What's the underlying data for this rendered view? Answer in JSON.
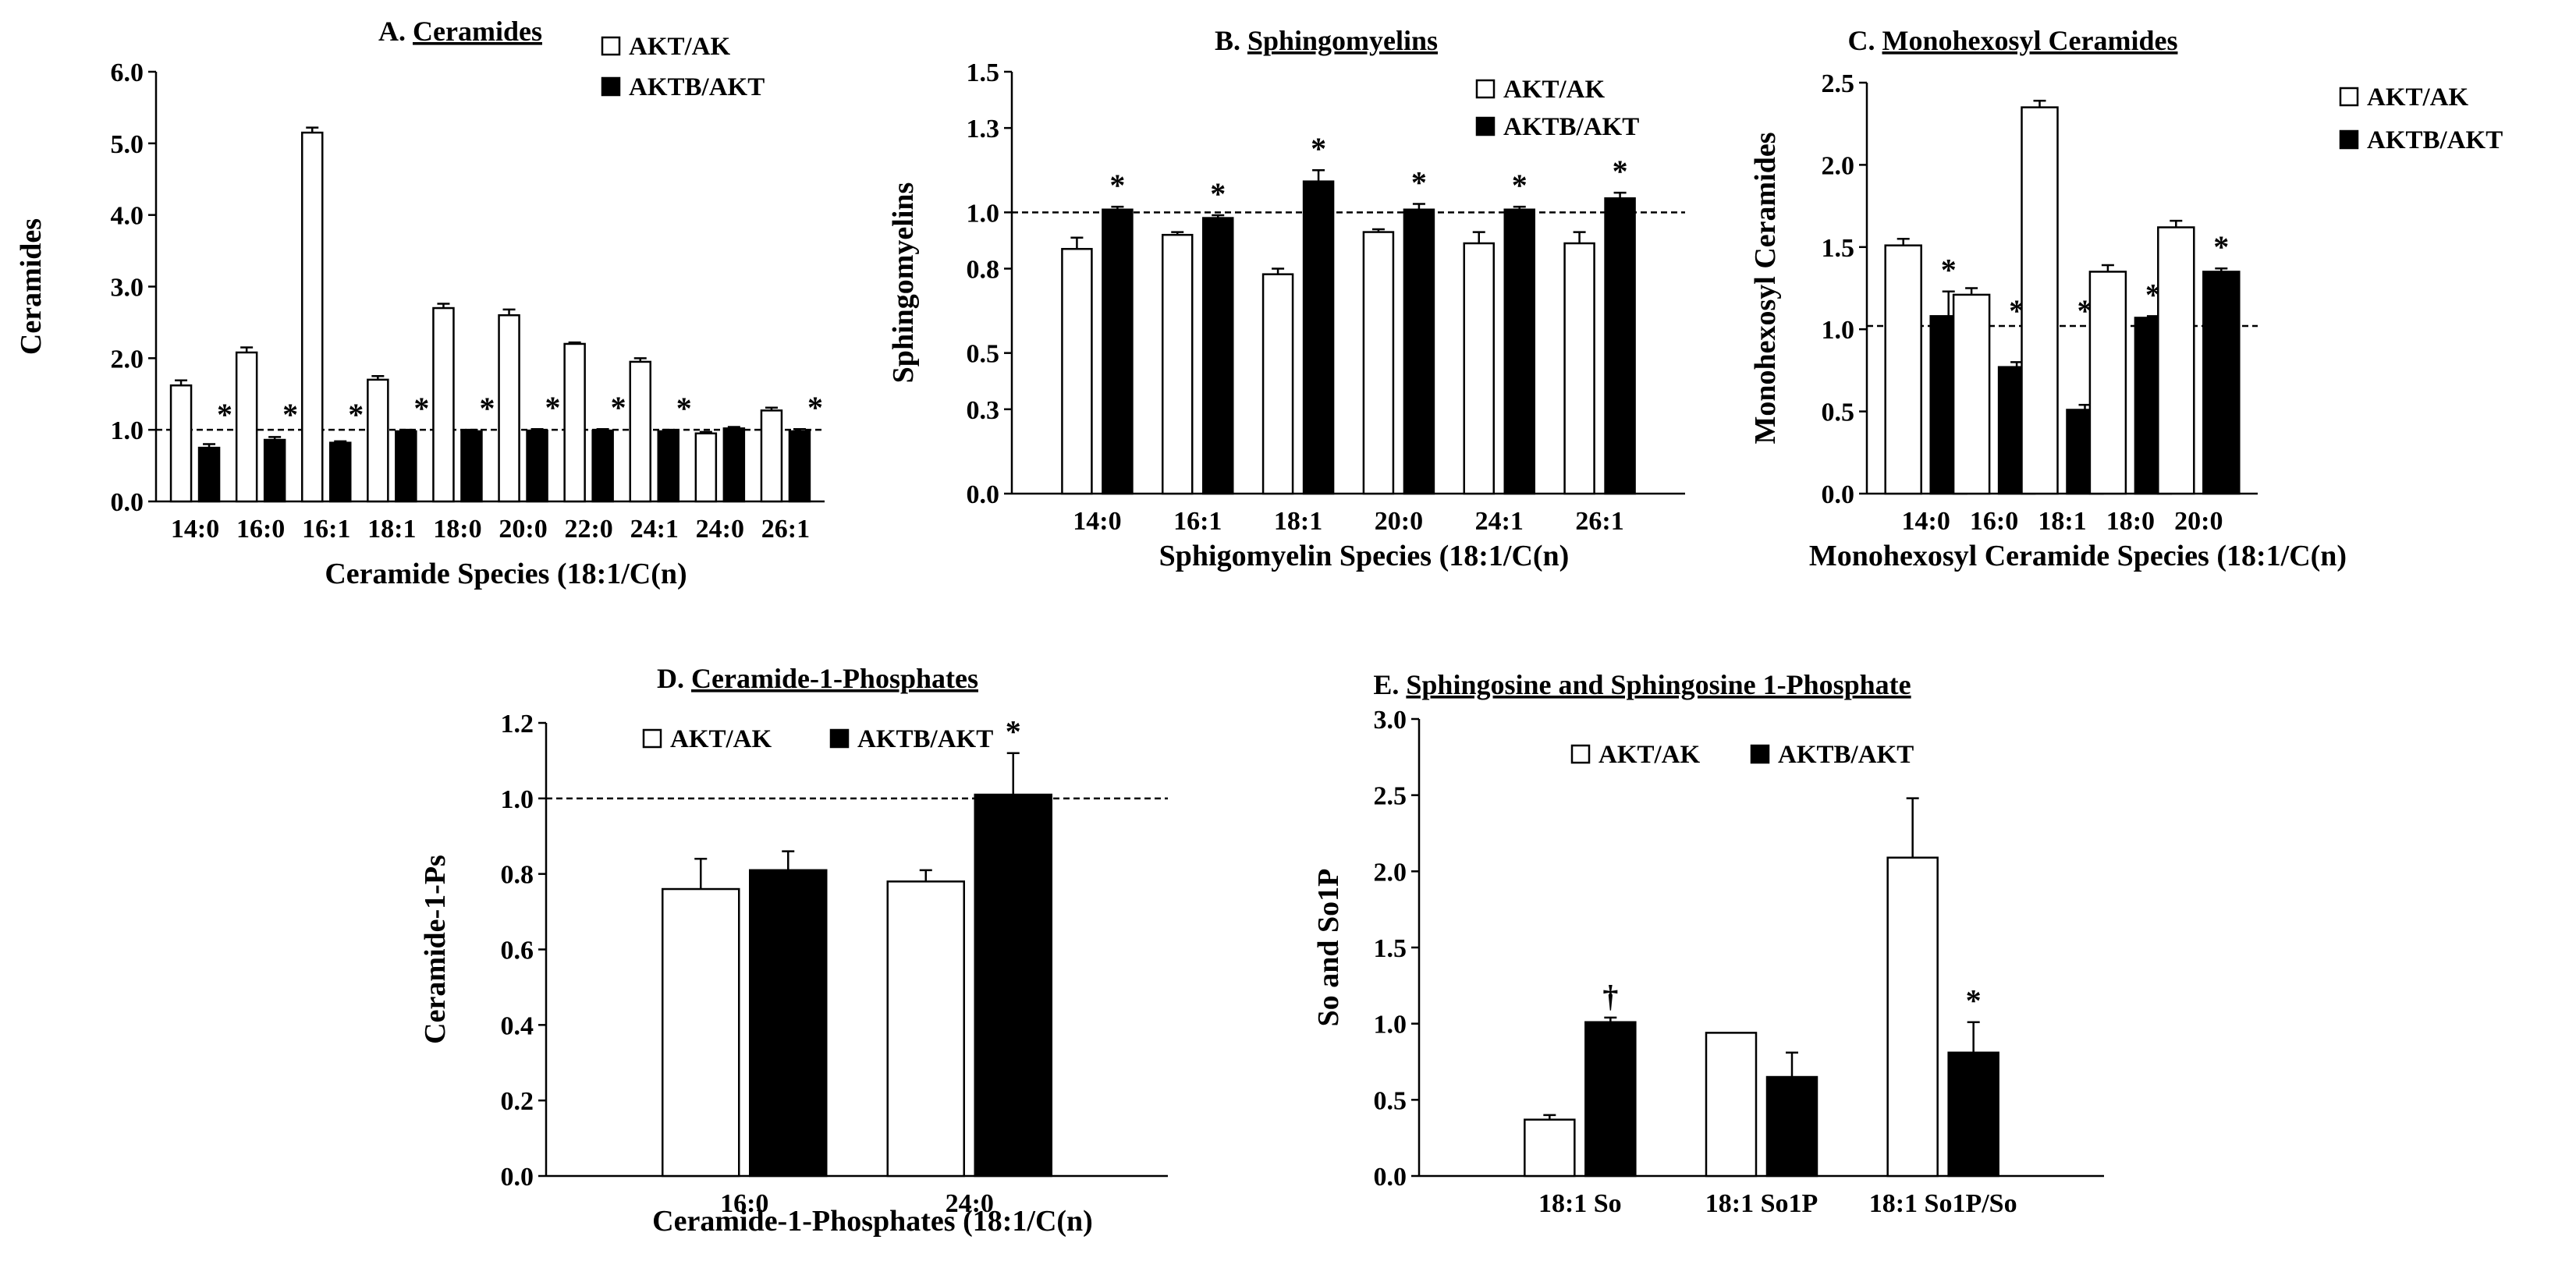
{
  "series_style": {
    "AKT/AK": "#ffffff",
    "AKTB/AKT": "#000000"
  },
  "chart_data": [
    {
      "id": "A",
      "type": "bar",
      "title_prefix": "A. ",
      "title": "Ceramides",
      "ylabel": "Ceramides",
      "xlabel": "Ceramide Species  (18:1/C(n)",
      "ylim": [
        0,
        6
      ],
      "yticks": [
        "0.0",
        "1.0",
        "2.0",
        "3.0",
        "4.0",
        "5.0",
        "6.0"
      ],
      "reference_line": 1.0,
      "categories": [
        "14:0",
        "16:0",
        "16:1",
        "18:1",
        "18:0",
        "20:0",
        "22:0",
        "24:1",
        "24:0",
        "26:1"
      ],
      "legend": [
        "AKT/AK",
        "AKTB/AKT"
      ],
      "legend_position": "top-right",
      "series": [
        {
          "name": "AKT/AK",
          "values": [
            1.62,
            2.08,
            5.15,
            1.7,
            2.7,
            2.6,
            2.2,
            1.95,
            0.95,
            1.27
          ],
          "errors": [
            0.07,
            0.07,
            0.07,
            0.05,
            0.06,
            0.08,
            0.02,
            0.05,
            0.02,
            0.04
          ]
        },
        {
          "name": "AKTB/AKT",
          "values": [
            0.75,
            0.86,
            0.82,
            0.98,
            0.98,
            0.99,
            0.99,
            0.98,
            1.02,
            0.98
          ],
          "errors": [
            0.05,
            0.04,
            0.02,
            0.02,
            0.02,
            0.02,
            0.02,
            0.02,
            0.02,
            0.03
          ]
        }
      ],
      "annotations": [
        "*",
        "*",
        "*",
        "*",
        "*",
        "*",
        "*",
        "*",
        "",
        "*"
      ]
    },
    {
      "id": "B",
      "type": "bar",
      "title_prefix": "B. ",
      "title": "Sphingomyelins",
      "ylabel": "Sphingomyelins",
      "xlabel": "Sphigomyelin  Species  (18:1/C(n)",
      "ylim": [
        0,
        1.5
      ],
      "yticks": [
        "0.0",
        "0.3",
        "0.5",
        "0.8",
        "1.0",
        "1.3",
        "1.5"
      ],
      "reference_line": 1.0,
      "categories": [
        "14:0",
        "16:1",
        "18:1",
        "20:0",
        "24:1",
        "26:1"
      ],
      "legend": [
        "AKT/AK",
        "AKTB/AKT"
      ],
      "legend_position": "top-right",
      "series": [
        {
          "name": "AKT/AK",
          "values": [
            0.87,
            0.92,
            0.78,
            0.93,
            0.89,
            0.89
          ],
          "errors": [
            0.04,
            0.01,
            0.02,
            0.01,
            0.04,
            0.04
          ]
        },
        {
          "name": "AKTB/AKT",
          "values": [
            1.01,
            0.98,
            1.11,
            1.01,
            1.01,
            1.05
          ],
          "errors": [
            0.01,
            0.01,
            0.04,
            0.02,
            0.01,
            0.02
          ]
        }
      ],
      "annotations": [
        "*",
        "*",
        "*",
        "*",
        "*",
        "*"
      ]
    },
    {
      "id": "C",
      "type": "bar",
      "title_prefix": "C. ",
      "title": "Monohexosyl Ceramides",
      "ylabel": "Monohexosyl Ceramides",
      "xlabel": "Monohexosyl  Ceramide Species  (18:1/C(n)",
      "ylim": [
        0,
        2.5
      ],
      "yticks": [
        "0.0",
        "0.5",
        "1.0",
        "1.5",
        "2.0",
        "2.5"
      ],
      "reference_line": 1.02,
      "categories": [
        "14:0",
        "16:0",
        "18:1",
        "18:0",
        "20:0"
      ],
      "legend": [
        "AKT/AK",
        "AKTB/AKT"
      ],
      "legend_position": "top-right",
      "series": [
        {
          "name": "AKT/AK",
          "values": [
            1.51,
            1.21,
            2.35,
            1.35,
            1.62
          ],
          "errors": [
            0.04,
            0.04,
            0.04,
            0.04,
            0.04
          ]
        },
        {
          "name": "AKTB/AKT",
          "values": [
            1.08,
            0.77,
            0.51,
            1.07,
            1.35
          ],
          "errors": [
            0.15,
            0.03,
            0.03,
            0.01,
            0.02
          ]
        }
      ],
      "annotations": [
        "*",
        "*",
        "*",
        "*",
        "*"
      ]
    },
    {
      "id": "D",
      "type": "bar",
      "title_prefix": "D. ",
      "title": "Ceramide-1-Phosphates",
      "ylabel": "Ceramide-1-Ps",
      "xlabel": "Ceramide-1-Phosphates  (18:1/C(n)",
      "ylim": [
        0,
        1.2
      ],
      "yticks": [
        "0.0",
        "0.2",
        "0.4",
        "0.6",
        "0.8",
        "1.0",
        "1.2"
      ],
      "reference_line": 1.0,
      "categories": [
        "16:0",
        "24:0"
      ],
      "legend": [
        "AKT/AK",
        "AKTB/AKT"
      ],
      "legend_position": "top",
      "series": [
        {
          "name": "AKT/AK",
          "values": [
            0.76,
            0.78
          ],
          "errors": [
            0.08,
            0.03
          ]
        },
        {
          "name": "AKTB/AKT",
          "values": [
            0.81,
            1.01
          ],
          "errors": [
            0.05,
            0.11
          ]
        }
      ],
      "annotations": [
        "",
        "*"
      ]
    },
    {
      "id": "E",
      "type": "bar",
      "title_prefix": "E. ",
      "title": "Sphingosine  and Sphingosine 1-Phosphate",
      "ylabel": "So and So1P",
      "xlabel": "",
      "ylim": [
        0,
        3
      ],
      "yticks": [
        "0.0",
        "0.5",
        "1.0",
        "1.5",
        "2.0",
        "2.5",
        "3.0"
      ],
      "reference_line": null,
      "categories": [
        "18:1 So",
        "18:1 So1P",
        "18:1 So1P/So"
      ],
      "legend": [
        "AKT/AK",
        "AKTB/AKT"
      ],
      "legend_position": "top-left",
      "series": [
        {
          "name": "AKT/AK",
          "values": [
            0.37,
            0.94,
            2.09
          ],
          "errors": [
            0.03,
            0.0,
            0.39
          ]
        },
        {
          "name": "AKTB/AKT",
          "values": [
            1.01,
            0.65,
            0.81
          ],
          "errors": [
            0.03,
            0.16,
            0.2
          ]
        }
      ],
      "annotations": [
        "†",
        "",
        "*"
      ]
    }
  ]
}
